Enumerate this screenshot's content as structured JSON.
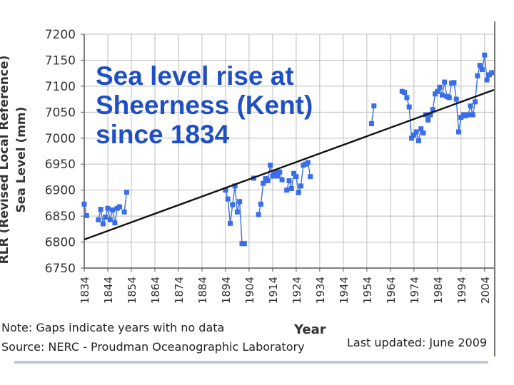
{
  "colors": {
    "series": "#3a6ee8",
    "trend": "#111111",
    "title": "#1f4fc4",
    "grid": "#bdbdbd",
    "text": "#333333"
  },
  "overlay_title_lines": [
    "Sea level rise at",
    "Sheerness (Kent)",
    "since 1834"
  ],
  "footer": {
    "note": "Note: Gaps indicate years with no data",
    "source": "Source: NERC - Proudman Oceanographic Laboratory",
    "updated": "Last updated: June 2009"
  },
  "chart_data": {
    "type": "line",
    "title": "Sea level rise at Sheerness (Kent) since 1834",
    "xlabel": "Year",
    "ylabel": [
      "RLR (Revised Local Reference)",
      "Sea Level (mm)"
    ],
    "xlim": [
      1834,
      2008
    ],
    "ylim": [
      6750,
      7200
    ],
    "yticks": [
      6750,
      6800,
      6850,
      6900,
      6950,
      7000,
      7050,
      7100,
      7150,
      7200
    ],
    "xticks": [
      1834,
      1844,
      1854,
      1864,
      1874,
      1884,
      1894,
      1904,
      1914,
      1924,
      1934,
      1944,
      1954,
      1964,
      1974,
      1984,
      1994,
      2004
    ],
    "grid": true,
    "trend": {
      "x": [
        1834,
        2008
      ],
      "y": [
        6805,
        7093
      ]
    },
    "segments": [
      {
        "x": [
          1834,
          1835
        ],
        "y": [
          6873,
          6851
        ]
      },
      {
        "x": [
          1840,
          1841,
          1842,
          1843,
          1844,
          1845,
          1846,
          1847,
          1848,
          1849
        ],
        "y": [
          6843,
          6863,
          6835,
          6848,
          6865,
          6843,
          6862,
          6837,
          6865,
          6868
        ]
      },
      {
        "x": [
          1851,
          1852
        ],
        "y": [
          6858,
          6896
        ]
      },
      {
        "x": [
          1894,
          1895,
          1896,
          1897,
          1898,
          1899,
          1900,
          1901,
          1902
        ],
        "y": [
          6900,
          6883,
          6836,
          6872,
          6908,
          6858,
          6878,
          6797,
          6797
        ]
      },
      {
        "x": [
          1906
        ],
        "y": [
          6923
        ]
      },
      {
        "x": [
          1908,
          1909,
          1910,
          1911,
          1912,
          1913,
          1914,
          1915,
          1916,
          1917,
          1918
        ],
        "y": [
          6853,
          6873,
          6913,
          6922,
          6918,
          6948,
          6927,
          6935,
          6927,
          6935,
          6920
        ]
      },
      {
        "x": [
          1920,
          1921,
          1922,
          1923,
          1924,
          1925,
          1926,
          1927,
          1928,
          1929,
          1930
        ],
        "y": [
          6900,
          6918,
          6903,
          6932,
          6926,
          6895,
          6908,
          6948,
          6950,
          6953,
          6926
        ]
      },
      {
        "x": [
          1956,
          1957
        ],
        "y": [
          7028,
          7062
        ]
      },
      {
        "x": [
          1969,
          1970,
          1971,
          1972,
          1973,
          1974,
          1975,
          1976,
          1977,
          1978
        ],
        "y": [
          7090,
          7088,
          7078,
          7060,
          7000,
          7006,
          7012,
          6995,
          7018,
          7010
        ]
      },
      {
        "x": [
          1979,
          1980,
          1981,
          1982,
          1983,
          1984,
          1985,
          1986,
          1987,
          1988,
          1989,
          1990
        ],
        "y": [
          7045,
          7035,
          7045,
          7055,
          7085,
          7090,
          7098,
          7083,
          7108,
          7080,
          7078,
          7106
        ]
      },
      {
        "x": [
          1991,
          1992,
          1993,
          1994,
          1995,
          1996,
          1997,
          1998,
          1999,
          2000,
          2001,
          2002,
          2003,
          2004,
          2005,
          2006,
          2007
        ],
        "y": [
          7107,
          7075,
          7012,
          7040,
          7045,
          7043,
          7045,
          7062,
          7045,
          7070,
          7120,
          7140,
          7132,
          7160,
          7112,
          7122,
          7126
        ]
      }
    ]
  }
}
